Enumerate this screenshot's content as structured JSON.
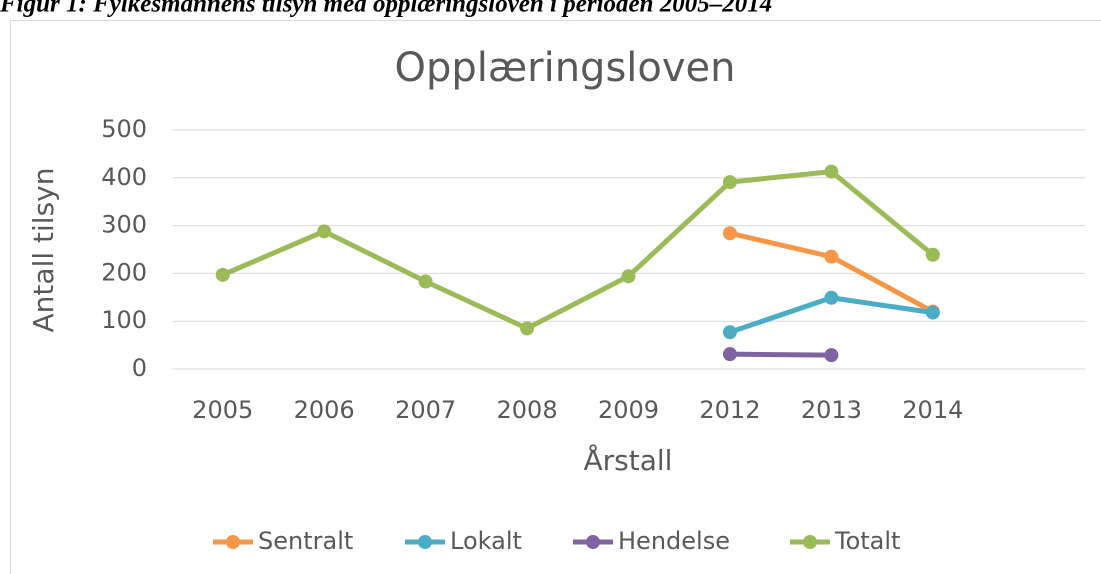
{
  "caption": "Figur 1: Fylkesmannens tilsyn med opplæringsloven i perioden 2005–2014",
  "chart_data": {
    "type": "line",
    "title": "Opplæringsloven",
    "x_label": "Årstall",
    "y_label": "Antall tilsyn",
    "categories": [
      "2005",
      "2006",
      "2007",
      "2008",
      "2009",
      "2012",
      "2013",
      "2014",
      null
    ],
    "series": [
      {
        "name": "Sentralt",
        "color": "#f79646",
        "values": [
          null,
          null,
          null,
          null,
          null,
          284,
          235,
          120,
          null
        ]
      },
      {
        "name": "Lokalt",
        "color": "#4bacc6",
        "values": [
          null,
          null,
          null,
          null,
          null,
          77,
          149,
          118,
          null
        ]
      },
      {
        "name": "Hendelse",
        "color": "#8064a2",
        "values": [
          null,
          null,
          null,
          null,
          null,
          31,
          29,
          null,
          null
        ]
      },
      {
        "name": "Totalt",
        "color": "#9bbb59",
        "values": [
          197,
          288,
          183,
          85,
          194,
          391,
          413,
          239,
          null
        ]
      }
    ],
    "ylim": [
      0,
      500
    ],
    "yticks": [
      0,
      100,
      200,
      300,
      400,
      500
    ],
    "grid": true,
    "legend": "bottom"
  }
}
